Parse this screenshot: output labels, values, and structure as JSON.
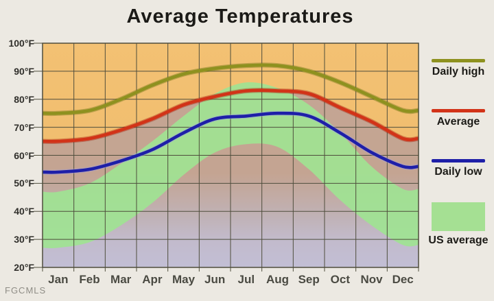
{
  "title": "Average Temperatures",
  "watermark": "FGCMLS",
  "legend": {
    "items": [
      {
        "label": "Daily high",
        "color": "#8E911F",
        "swatch": "line"
      },
      {
        "label": "Average",
        "color": "#D23318",
        "swatch": "line"
      },
      {
        "label": "Daily low",
        "color": "#1E1FA8",
        "swatch": "line"
      },
      {
        "label": "US average",
        "color": "#A5E093",
        "swatch": "area"
      }
    ]
  },
  "axes": {
    "y_ticks": [
      "100°F",
      "90°F",
      "80°F",
      "70°F",
      "60°F",
      "50°F",
      "40°F",
      "30°F",
      "20°F"
    ],
    "x_ticks": [
      "Jan",
      "Feb",
      "Mar",
      "Apr",
      "May",
      "Jun",
      "Jul",
      "Aug",
      "Sep",
      "Oct",
      "Nov",
      "Dec"
    ]
  },
  "chart_data": {
    "type": "line",
    "title": "Average Temperatures",
    "categories": [
      "Jan",
      "Feb",
      "Mar",
      "Apr",
      "May",
      "Jun",
      "Jul",
      "Aug",
      "Sep",
      "Oct",
      "Nov",
      "Dec"
    ],
    "y_unit": "°F",
    "ylim": [
      20,
      100
    ],
    "grid": true,
    "legend_position": "right",
    "series": [
      {
        "name": "Daily high",
        "color": "#8E911F",
        "halo": "#6F7214",
        "values": [
          75,
          76,
          80,
          85,
          89,
          91,
          92,
          92,
          90,
          86,
          81,
          76
        ]
      },
      {
        "name": "Average",
        "color": "#D23318",
        "halo": "#A82410",
        "values": [
          65,
          66,
          69,
          73,
          78,
          81,
          83,
          83,
          82,
          77,
          72,
          66
        ]
      },
      {
        "name": "Daily low",
        "color": "#1E1FA8",
        "halo": "#9B9CE4",
        "values": [
          54,
          55,
          58,
          62,
          68,
          73,
          74,
          75,
          74,
          68,
          61,
          56
        ]
      },
      {
        "name": "US average high",
        "role": "band-top",
        "values": [
          47,
          50,
          57,
          65,
          74,
          82,
          86,
          84,
          78,
          68,
          56,
          48
        ]
      },
      {
        "name": "US average low",
        "role": "band-bottom",
        "values": [
          27,
          29,
          35,
          43,
          53,
          61,
          64,
          63,
          55,
          44,
          35,
          28
        ]
      }
    ],
    "us_average_band_color": "#9FE392",
    "below_average_overlay": {
      "color": "#7C7CCC",
      "opacity": 0.38
    },
    "grid_color": "#4E4D3C",
    "plot_background_gradient": [
      {
        "offset": 0,
        "color": "#F3C173"
      },
      {
        "offset": 0.58,
        "color": "#F0BD6E"
      },
      {
        "offset": 0.76,
        "color": "#EBD2A4"
      },
      {
        "offset": 0.88,
        "color": "#EDE2CC"
      },
      {
        "offset": 1,
        "color": "#EEE8DA"
      }
    ]
  }
}
